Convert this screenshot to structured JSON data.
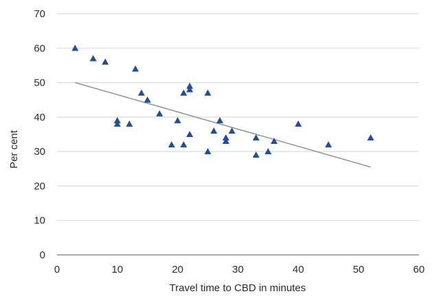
{
  "chart_data": {
    "type": "scatter",
    "xlabel": "Travel time to CBD in minutes",
    "ylabel": "Per cent",
    "xlim": [
      0,
      60
    ],
    "ylim": [
      0,
      70
    ],
    "x_ticks": [
      "0",
      "10",
      "20",
      "30",
      "40",
      "50",
      "60"
    ],
    "y_ticks": [
      "0",
      "10",
      "20",
      "30",
      "40",
      "50",
      "60",
      "70"
    ],
    "grid": "horizontal",
    "marker": "triangle",
    "marker_color": "#1f4e9c",
    "trendline_color": "#8c8c8c",
    "points": [
      {
        "x": 3,
        "y": 60
      },
      {
        "x": 6,
        "y": 57
      },
      {
        "x": 8,
        "y": 56
      },
      {
        "x": 10,
        "y": 39
      },
      {
        "x": 10,
        "y": 38
      },
      {
        "x": 12,
        "y": 38
      },
      {
        "x": 13,
        "y": 54
      },
      {
        "x": 14,
        "y": 47
      },
      {
        "x": 15,
        "y": 45
      },
      {
        "x": 17,
        "y": 41
      },
      {
        "x": 19,
        "y": 32
      },
      {
        "x": 20,
        "y": 39
      },
      {
        "x": 21,
        "y": 47
      },
      {
        "x": 21,
        "y": 32
      },
      {
        "x": 22,
        "y": 49
      },
      {
        "x": 22,
        "y": 48
      },
      {
        "x": 22,
        "y": 35
      },
      {
        "x": 25,
        "y": 47
      },
      {
        "x": 25,
        "y": 30
      },
      {
        "x": 26,
        "y": 36
      },
      {
        "x": 27,
        "y": 39
      },
      {
        "x": 28,
        "y": 34
      },
      {
        "x": 28,
        "y": 33
      },
      {
        "x": 29,
        "y": 36
      },
      {
        "x": 33,
        "y": 34
      },
      {
        "x": 33,
        "y": 29
      },
      {
        "x": 35,
        "y": 30
      },
      {
        "x": 36,
        "y": 33
      },
      {
        "x": 40,
        "y": 38
      },
      {
        "x": 45,
        "y": 32
      },
      {
        "x": 52,
        "y": 34
      }
    ],
    "trendline": {
      "x": [
        3,
        52
      ],
      "y": [
        50,
        25.5
      ]
    }
  }
}
